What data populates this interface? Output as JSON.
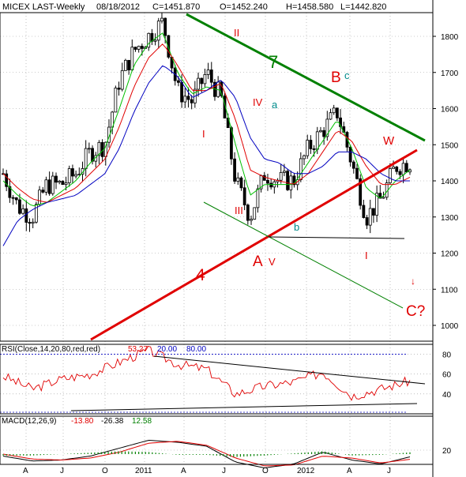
{
  "header": {
    "title": "MICEX LAST-Weekly",
    "date": "08/18/2012",
    "close": "C=1451.870",
    "open": "O=1452.240",
    "high": "H=1458.580",
    "low": "L=1442.820"
  },
  "colors": {
    "price_bar": "#000000",
    "ma_fast": "#00c000",
    "ma_mid": "#e00000",
    "ma_slow": "#0000c0",
    "trend_green": "#008000",
    "trend_red": "#e00000",
    "rsi_line": "#e00000",
    "rsi_bands": "#0000c0",
    "macd_line": "#000000",
    "macd_signal": "#e00000",
    "macd_hist": "#008000"
  },
  "x_labels": [
    "A",
    "J",
    "O",
    "2011",
    "A",
    "J",
    "O",
    "2012",
    "A",
    "J"
  ],
  "wave_labels": {
    "ii": "II",
    "seven": "7",
    "iv": "IV",
    "a_small": "a",
    "B": "B",
    "c": "c",
    "i": "I",
    "w": "W",
    "iii": "III",
    "b": "b",
    "A": "A",
    "v": "V",
    "four": "4",
    "i2": "I",
    "C": "C?"
  },
  "rsi": {
    "title": "RSI(Close,14,20,80,red,red)",
    "value": "53.27",
    "lower": "20.00",
    "upper": "80.00",
    "ticks": [
      "80",
      "60",
      "40"
    ]
  },
  "macd": {
    "title": "MACD(12,26,9)",
    "macd": "-13.80",
    "signal": "-26.38",
    "hist": "12.58",
    "ticks": [
      "20"
    ]
  },
  "chart_data": [
    {
      "type": "candlestick",
      "title": "MICEX LAST-Weekly",
      "y_ticks": [
        1000,
        1100,
        1200,
        1300,
        1400,
        1500,
        1600,
        1700,
        1800
      ],
      "ylim": [
        950,
        1880
      ],
      "x": [
        "2010-04",
        "2010-05",
        "2010-06",
        "2010-07",
        "2010-08",
        "2010-09",
        "2010-10",
        "2010-11",
        "2010-12",
        "2011-01",
        "2011-02",
        "2011-03",
        "2011-04",
        "2011-05",
        "2011-06",
        "2011-07",
        "2011-08",
        "2011-09",
        "2011-10",
        "2011-11",
        "2011-12",
        "2012-01",
        "2012-02",
        "2012-03",
        "2012-04",
        "2012-05",
        "2012-06",
        "2012-07",
        "2012-08"
      ],
      "close": [
        1420,
        1330,
        1300,
        1390,
        1390,
        1420,
        1480,
        1500,
        1680,
        1760,
        1800,
        1840,
        1650,
        1620,
        1700,
        1630,
        1400,
        1300,
        1420,
        1400,
        1400,
        1490,
        1540,
        1590,
        1450,
        1300,
        1350,
        1440,
        1452
      ],
      "series": [
        {
          "name": "fast MA",
          "values": [
            1400,
            1360,
            1330,
            1340,
            1370,
            1400,
            1450,
            1490,
            1600,
            1720,
            1780,
            1810,
            1700,
            1640,
            1660,
            1650,
            1500,
            1360,
            1390,
            1390,
            1390,
            1450,
            1510,
            1570,
            1490,
            1380,
            1350,
            1400,
            1430
          ]
        },
        {
          "name": "mid MA",
          "values": [
            1420,
            1380,
            1350,
            1340,
            1360,
            1380,
            1420,
            1460,
            1550,
            1660,
            1740,
            1780,
            1720,
            1650,
            1650,
            1670,
            1570,
            1430,
            1410,
            1400,
            1390,
            1420,
            1480,
            1540,
            1510,
            1440,
            1390,
            1390,
            1410
          ]
        },
        {
          "name": "slow MA",
          "values": [
            1220,
            1290,
            1320,
            1340,
            1350,
            1360,
            1390,
            1420,
            1490,
            1590,
            1670,
            1720,
            1690,
            1630,
            1650,
            1680,
            1630,
            1520,
            1460,
            1450,
            1420,
            1420,
            1440,
            1480,
            1480,
            1460,
            1420,
            1400,
            1400
          ]
        }
      ]
    },
    {
      "type": "line",
      "title": "RSI(Close,14,20,80,red,red)",
      "y_ticks": [
        40,
        60,
        80
      ],
      "ylim": [
        20,
        90
      ],
      "x": [
        "2010-04",
        "2010-06",
        "2010-08",
        "2010-10",
        "2010-12",
        "2011-02",
        "2011-04",
        "2011-06",
        "2011-08",
        "2011-10",
        "2011-12",
        "2012-02",
        "2012-04",
        "2012-06",
        "2012-08"
      ],
      "series": [
        {
          "name": "RSI",
          "values": [
            58,
            45,
            55,
            60,
            72,
            84,
            70,
            65,
            40,
            48,
            52,
            62,
            38,
            45,
            53.27
          ]
        }
      ]
    },
    {
      "type": "line",
      "title": "MACD(12,26,9)",
      "y_ticks": [
        20
      ],
      "x": [
        "2010-04",
        "2010-06",
        "2010-08",
        "2010-10",
        "2010-12",
        "2011-02",
        "2011-04",
        "2011-06",
        "2011-08",
        "2011-10",
        "2011-12",
        "2012-02",
        "2012-04",
        "2012-06",
        "2012-08"
      ],
      "series": [
        {
          "name": "MACD",
          "values": [
            -10,
            -35,
            -30,
            -10,
            30,
            70,
            60,
            40,
            -40,
            -70,
            -50,
            10,
            -30,
            -50,
            -13.8
          ]
        },
        {
          "name": "Signal",
          "values": [
            0,
            -25,
            -30,
            -20,
            10,
            55,
            65,
            45,
            -20,
            -60,
            -55,
            -10,
            -20,
            -45,
            -26.38
          ]
        }
      ]
    }
  ]
}
